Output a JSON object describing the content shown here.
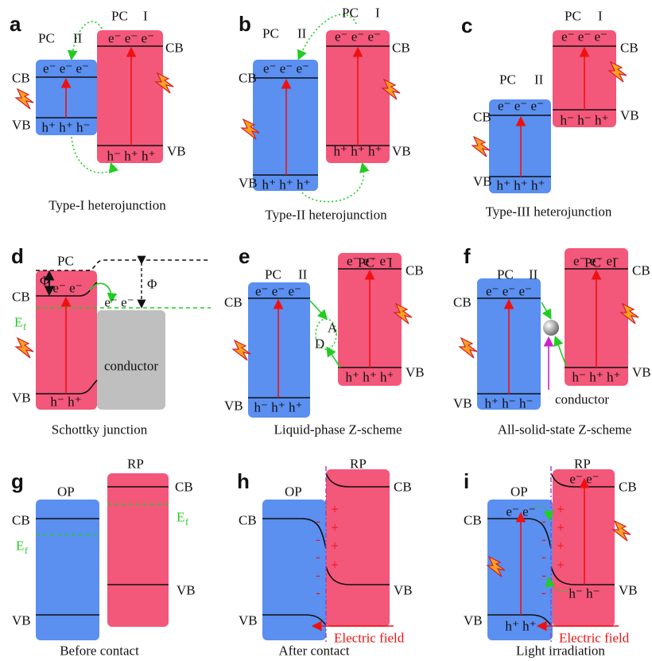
{
  "panels": [
    {
      "letter": "a",
      "caption": "Type-I heterojunction",
      "labels": [
        "PC",
        "II",
        "PC",
        "I",
        "CB",
        "VB",
        "CB",
        "VB",
        "e⁻ e⁻ e⁻",
        "h⁺ h⁺ h⁻",
        "e⁻ e⁻ e⁻",
        "h⁻ h⁺ h⁺"
      ]
    },
    {
      "letter": "b",
      "caption": "Type-II heterojunction",
      "labels": [
        "PC",
        "II",
        "PC",
        "I",
        "CB",
        "VB",
        "CB",
        "VB",
        "e⁻ e⁻ e⁻",
        "h⁺ h⁺ h⁺",
        "e⁻ e⁻ e⁻",
        "h⁺ h⁺ h⁺"
      ]
    },
    {
      "letter": "c",
      "caption": "Type-III heterojunction",
      "labels": [
        "PC",
        "II",
        "PC",
        "I",
        "CB",
        "VB",
        "CB",
        "VB",
        "e⁻ e⁻ e⁻",
        "h⁺ h⁺ h⁺",
        "e⁻ e⁻ e⁻",
        "h⁻ h⁻ h⁺"
      ]
    },
    {
      "letter": "d",
      "caption": "Schottky junction",
      "labels": [
        "PC",
        "Φ",
        "Φ",
        "CB",
        "e⁻ e⁻",
        "e⁻ e⁻",
        "E",
        "f",
        "VB",
        "h⁻ h⁺",
        "conductor"
      ]
    },
    {
      "letter": "e",
      "caption": "Liquid-phase Z-scheme",
      "labels": [
        "PC",
        "II",
        "PC",
        "I",
        "CB",
        "VB",
        "CB",
        "VB",
        "e⁻ e⁻ e⁻",
        "h⁻ h⁺ h⁺",
        "e⁻ e⁻ e⁻",
        "h⁺ h⁺ h⁺",
        "A",
        "D"
      ]
    },
    {
      "letter": "f",
      "caption": "All-solid-state Z-scheme",
      "labels": [
        "PC",
        "II",
        "PC",
        "I",
        "CB",
        "VB",
        "CB",
        "VB",
        "e⁻ e⁻ e⁻",
        "h⁺ h⁻ h⁻",
        "e⁻ e⁻ e⁻",
        "h⁻ h⁺ h⁺",
        "conductor"
      ]
    },
    {
      "letter": "g",
      "caption": "Before contact",
      "labels": [
        "OP",
        "RP",
        "CB",
        "E",
        "f",
        "VB",
        "CB",
        "E",
        "f",
        "VB"
      ]
    },
    {
      "letter": "h",
      "caption": "After contact",
      "labels": [
        "OP",
        "RP",
        "CB",
        "VB",
        "CB",
        "VB",
        "+",
        "+",
        "+",
        "+",
        "-",
        "-",
        "-",
        "-",
        "-",
        "Electric field"
      ]
    },
    {
      "letter": "i",
      "caption": "Light irradiation",
      "labels": [
        "OP",
        "RP",
        "CB",
        "VB",
        "CB",
        "VB",
        "e⁻ e⁻",
        "h⁺ h⁺",
        "e⁻ e⁻",
        "h⁻ h⁻",
        "+",
        "+",
        "+",
        "+",
        "-",
        "-",
        "-",
        "-",
        "-",
        "Electric field"
      ]
    }
  ]
}
